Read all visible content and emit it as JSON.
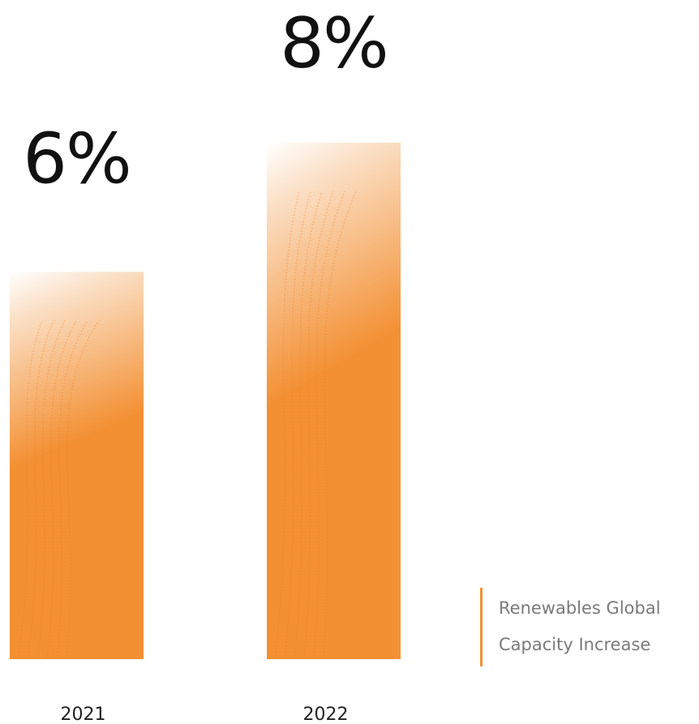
{
  "chart_data": {
    "type": "bar",
    "categories": [
      "2021",
      "2022"
    ],
    "series": [
      {
        "name": "Renewables Global Capacity Increase",
        "color": "#f39033",
        "values": [
          6,
          8
        ],
        "value_labels": [
          "6%",
          "8%"
        ]
      }
    ]
  }
}
